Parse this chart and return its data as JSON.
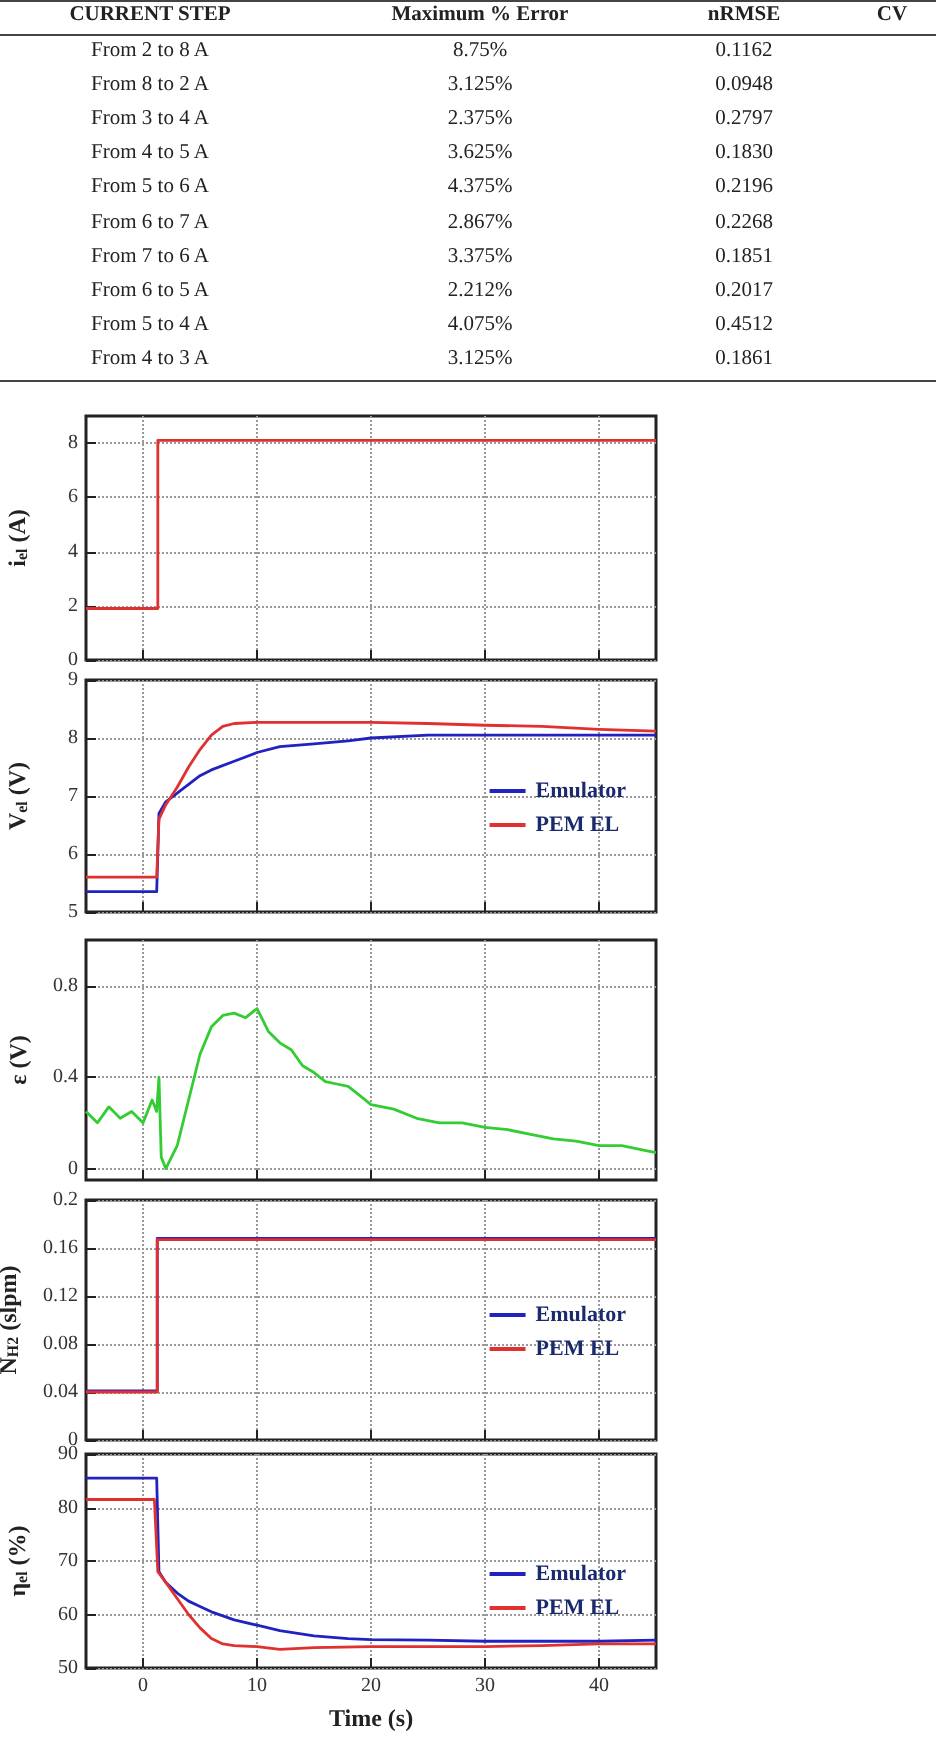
{
  "chart_data": [
    {
      "type": "other",
      "ylabel": "CURRENT STEP",
      "categories": [
        "From 2 to 8 A",
        "From 8 to 2 A",
        "From 3 to 4 A",
        "From 4 to 5 A",
        "From 5 to 6 A",
        "From 6 to 7 A",
        "From 7 to 6 A",
        "From 6 to 5 A",
        "From 5 to 4 A",
        "From 4 to 3 A"
      ],
      "series": [
        {
          "name": "Maximum % Error",
          "values": [
            8.75,
            3.125,
            2.375,
            3.625,
            4.375,
            2.867,
            3.375,
            2.212,
            4.075,
            3.125
          ],
          "value_labels": [
            "8.75%",
            "3.125%",
            "2.375%",
            "3.625%",
            "4.375%",
            "2.867%",
            "3.375%",
            "2.212%",
            "4.075%",
            "3.125%"
          ]
        },
        {
          "name": "nRMSE",
          "values": [
            0.1162,
            0.0948,
            0.2797,
            0.183,
            0.2196,
            0.2268,
            0.1851,
            0.2017,
            0.4512,
            0.1861
          ],
          "value_labels": [
            "0.1162",
            "0.0948",
            "0.2797",
            "0.1830",
            "0.2196",
            "0.2268",
            "0.1851",
            "0.2017",
            "0.4512",
            "0.1861"
          ]
        },
        {
          "name": "CV",
          "values": [
            null,
            null,
            null,
            null,
            null,
            null,
            null,
            null,
            null,
            null
          ]
        }
      ]
    },
    {
      "type": "line",
      "ylabel": "i$_{el}$ (A)",
      "xlim": [
        -5,
        45
      ],
      "xticks": [
        0,
        10,
        20,
        30,
        40
      ],
      "ylim": [
        0,
        9
      ],
      "yticks": [
        0,
        2,
        4,
        6,
        8
      ],
      "grid": true,
      "tick_labels": "y",
      "legend": false,
      "series": [
        {
          "color": "#e03030",
          "x": [
            -5,
            1.3,
            1.3,
            45
          ],
          "values": [
            1.9,
            1.9,
            8.1,
            8.1
          ]
        }
      ]
    },
    {
      "type": "line",
      "ylabel": "V$_{el}$ (V)",
      "xlim": [
        -5,
        45
      ],
      "xticks": [
        0,
        10,
        20,
        30,
        40
      ],
      "ylim": [
        5,
        9
      ],
      "yticks": [
        5,
        6,
        7,
        8,
        9
      ],
      "grid": true,
      "tick_labels": "y",
      "legend": "right",
      "series": [
        {
          "name": "Emulator",
          "color": "#2222c0",
          "x": [
            -5,
            1.2,
            1.4,
            2,
            3,
            4,
            5,
            6,
            8,
            10,
            12,
            15,
            18,
            20,
            25,
            30,
            35,
            40,
            45
          ],
          "values": [
            5.35,
            5.35,
            6.7,
            6.9,
            7.05,
            7.2,
            7.35,
            7.45,
            7.6,
            7.75,
            7.85,
            7.9,
            7.95,
            8.0,
            8.05,
            8.05,
            8.05,
            8.05,
            8.05
          ]
        },
        {
          "name": "PEM EL",
          "color": "#e03030",
          "x": [
            -5,
            1.2,
            1.4,
            2,
            3,
            4,
            5,
            6,
            7,
            8,
            10,
            15,
            20,
            25,
            30,
            35,
            40,
            45
          ],
          "values": [
            5.6,
            5.6,
            6.6,
            6.85,
            7.15,
            7.5,
            7.8,
            8.05,
            8.2,
            8.25,
            8.27,
            8.27,
            8.27,
            8.25,
            8.22,
            8.2,
            8.15,
            8.12
          ]
        }
      ]
    },
    {
      "type": "line",
      "ylabel": "ε (V)",
      "xlim": [
        -5,
        45
      ],
      "xticks": [
        0,
        10,
        20,
        30,
        40
      ],
      "ylim": [
        -0.05,
        1
      ],
      "yticks": [
        0,
        0.4,
        0.8
      ],
      "grid": true,
      "tick_labels": "y",
      "legend": false,
      "series": [
        {
          "color": "#33cc33",
          "x": [
            -5,
            -4,
            -3,
            -2,
            -1,
            0,
            0.8,
            1.2,
            1.4,
            1.6,
            2,
            2.5,
            3,
            4,
            5,
            6,
            7,
            8,
            9,
            10,
            11,
            12,
            13,
            14,
            15,
            16,
            17,
            18,
            19,
            20,
            22,
            24,
            26,
            28,
            30,
            32,
            34,
            36,
            38,
            40,
            42,
            44,
            45
          ],
          "values": [
            0.25,
            0.2,
            0.27,
            0.22,
            0.25,
            0.2,
            0.3,
            0.25,
            0.4,
            0.05,
            0.0,
            0.05,
            0.1,
            0.3,
            0.5,
            0.62,
            0.67,
            0.68,
            0.66,
            0.7,
            0.6,
            0.55,
            0.52,
            0.45,
            0.42,
            0.38,
            0.37,
            0.36,
            0.32,
            0.28,
            0.26,
            0.22,
            0.2,
            0.2,
            0.18,
            0.17,
            0.15,
            0.13,
            0.12,
            0.1,
            0.1,
            0.08,
            0.07
          ]
        }
      ]
    },
    {
      "type": "line",
      "ylabel": "N$_{H2}$ (slpm)",
      "xlim": [
        -5,
        45
      ],
      "xticks": [
        0,
        10,
        20,
        30,
        40
      ],
      "ylim": [
        0,
        0.2
      ],
      "yticks": [
        0,
        0.04,
        0.08,
        0.12,
        0.16,
        0.2
      ],
      "grid": true,
      "tick_labels": "y",
      "legend": "right",
      "series": [
        {
          "name": "Emulator",
          "color": "#2222c0",
          "x": [
            -5,
            1.25,
            1.25,
            45
          ],
          "values": [
            0.041,
            0.041,
            0.168,
            0.168
          ]
        },
        {
          "name": "PEM EL",
          "color": "#e03030",
          "x": [
            -5,
            1.25,
            1.25,
            45
          ],
          "values": [
            0.04,
            0.04,
            0.167,
            0.167
          ]
        }
      ]
    },
    {
      "type": "line",
      "ylabel": "η$_{el}$ (%)",
      "xlabel": "Time (s)",
      "xlim": [
        -5,
        45
      ],
      "xticks": [
        0,
        10,
        20,
        30,
        40
      ],
      "ylim": [
        50,
        90
      ],
      "yticks": [
        50,
        60,
        70,
        80,
        90
      ],
      "grid": true,
      "legend": "right",
      "series": [
        {
          "name": "Emulator",
          "color": "#2222c0",
          "x": [
            -5,
            1.2,
            1.4,
            2,
            3,
            4,
            5,
            6,
            8,
            10,
            12,
            15,
            18,
            20,
            25,
            30,
            35,
            40,
            45
          ],
          "values": [
            85.5,
            85.5,
            68,
            66,
            64,
            62.5,
            61.5,
            60.5,
            59,
            58,
            57,
            56,
            55.5,
            55.3,
            55.2,
            55,
            55,
            55,
            55.2
          ]
        },
        {
          "name": "PEM EL",
          "color": "#e03030",
          "x": [
            -5,
            1.0,
            1.3,
            2,
            3,
            4,
            5,
            6,
            7,
            8,
            10,
            12,
            15,
            20,
            25,
            30,
            35,
            40,
            45
          ],
          "values": [
            81.5,
            81.5,
            68,
            66,
            63,
            60,
            57.5,
            55.5,
            54.5,
            54.2,
            54,
            53.5,
            53.8,
            54,
            54,
            54,
            54.2,
            54.5,
            54.5
          ]
        }
      ]
    }
  ]
}
